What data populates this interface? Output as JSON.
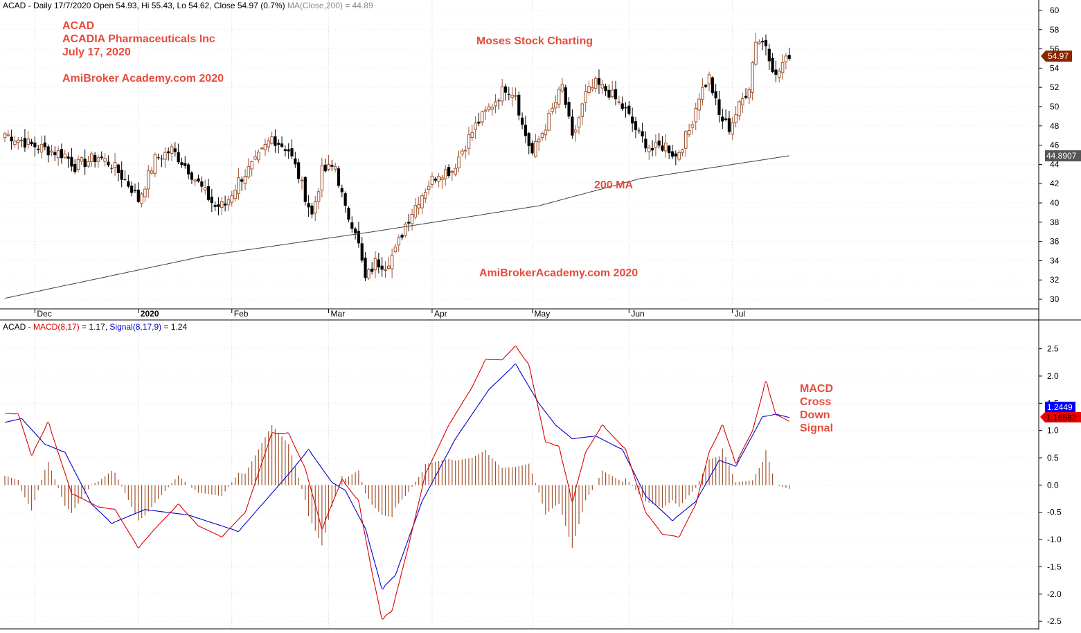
{
  "header": {
    "price_info": "ACAD - Daily 17/7/2020 Open 54.93, Hi 55.43, Lo 54.62, Close 54.97 (0.7%)",
    "ma_info": "MA(Close,200) = 44.89"
  },
  "macd_header": {
    "prefix": "ACAD - ",
    "macd": "MACD(8,17)",
    "macd_val": " = 1.17, ",
    "signal": "Signal(8,17,9)",
    "signal_val": " = 1.24"
  },
  "annotations": {
    "ticker": "ACAD",
    "company": "ACADIA Pharmaceuticals Inc",
    "date": "July 17, 2020",
    "watermark_top": "AmiBroker Academy.com  2020",
    "brand": "Moses Stock Charting",
    "ma_label": "200 MA",
    "watermark_mid": "AmiBrokerAcademy.com  2020",
    "macd_note": [
      "MACD",
      "Cross",
      "Down",
      "Signal"
    ]
  },
  "badges": {
    "close": "54.97",
    "ma": "44.8907",
    "signal": "1.2449",
    "macd": "1.16582"
  },
  "colors": {
    "up_candle": "#a0522d",
    "down_candle": "#000000",
    "ma_line": "#404040",
    "macd_line": "#dd0000",
    "signal_line": "#0000cc",
    "histogram": "#a0522d",
    "annotation": "#e74c3c",
    "close_badge": "#8b2500",
    "ma_badge": "#555555",
    "signal_badge": "#0000ff",
    "macd_badge": "#ee0000"
  },
  "chart_data": [
    {
      "type": "candlestick",
      "ticker": "ACAD",
      "x_axis": [
        "Dec",
        "2020",
        "Feb",
        "Mar",
        "Apr",
        "May",
        "Jun",
        "Jul"
      ],
      "ylim": [
        29.5,
        60.5
      ],
      "yticks": [
        30,
        32,
        34,
        36,
        38,
        40,
        42,
        44,
        46,
        48,
        50,
        52,
        54,
        56,
        58,
        60
      ],
      "close_anchors": [
        [
          0,
          47.2
        ],
        [
          8,
          46.0
        ],
        [
          13,
          45.5
        ],
        [
          18,
          45.0
        ],
        [
          21,
          43.8
        ],
        [
          28,
          44.8
        ],
        [
          32,
          44.0
        ],
        [
          38,
          41.5
        ],
        [
          40,
          40.3
        ],
        [
          45,
          44.5
        ],
        [
          50,
          45.5
        ],
        [
          55,
          43.5
        ],
        [
          60,
          41.0
        ],
        [
          63,
          39.6
        ],
        [
          66,
          39.8
        ],
        [
          70,
          42.3
        ],
        [
          75,
          44.2
        ],
        [
          80,
          46.8
        ],
        [
          85,
          45.5
        ],
        [
          88,
          42.8
        ],
        [
          92,
          38.7
        ],
        [
          95,
          43.2
        ],
        [
          99,
          43.8
        ],
        [
          102,
          39.2
        ],
        [
          105,
          37.3
        ],
        [
          108,
          32.0
        ],
        [
          111,
          33.8
        ],
        [
          114,
          33.6
        ],
        [
          117,
          35.0
        ],
        [
          120,
          37.8
        ],
        [
          124,
          40.4
        ],
        [
          127,
          42.0
        ],
        [
          130,
          43.2
        ],
        [
          134,
          43.4
        ],
        [
          137,
          45.5
        ],
        [
          141,
          48.0
        ],
        [
          145,
          49.8
        ],
        [
          150,
          52.0
        ],
        [
          153,
          51.4
        ],
        [
          155,
          48.0
        ],
        [
          158,
          45.1
        ],
        [
          163,
          48.8
        ],
        [
          167,
          52.1
        ],
        [
          170,
          46.5
        ],
        [
          174,
          51.2
        ],
        [
          177,
          52.3
        ],
        [
          181,
          51.5
        ],
        [
          186,
          49.5
        ],
        [
          190,
          47.0
        ],
        [
          194,
          45.5
        ],
        [
          198,
          46.0
        ],
        [
          201,
          44.8
        ],
        [
          205,
          47.5
        ],
        [
          208,
          51.2
        ],
        [
          211,
          53.0
        ],
        [
          214,
          49.0
        ],
        [
          217,
          47.8
        ],
        [
          220,
          50.0
        ],
        [
          223,
          52.2
        ],
        [
          225,
          57.0
        ],
        [
          228,
          56.5
        ],
        [
          231,
          53.0
        ],
        [
          233,
          54.5
        ],
        [
          235,
          54.97
        ]
      ],
      "ma200_anchors": [
        [
          0,
          30.1
        ],
        [
          60,
          34.5
        ],
        [
          110,
          37.0
        ],
        [
          160,
          39.7
        ],
        [
          190,
          42.5
        ],
        [
          220,
          44.1
        ],
        [
          235,
          44.9
        ]
      ],
      "last_close": 54.97,
      "ma200_last": 44.8907
    },
    {
      "type": "line",
      "title": "MACD(8,17), Signal(8,17,9)",
      "ylim": [
        -2.6,
        2.8
      ],
      "yticks": [
        -2.5,
        -2.0,
        -1.5,
        -1.0,
        -0.5,
        0.0,
        0.5,
        1.0,
        1.5,
        2.0,
        2.5
      ],
      "series": [
        {
          "name": "MACD(8,17)",
          "anchors": [
            [
              0,
              1.32
            ],
            [
              4,
              1.3
            ],
            [
              8,
              0.55
            ],
            [
              13,
              1.15
            ],
            [
              20,
              -0.15
            ],
            [
              28,
              -0.4
            ],
            [
              33,
              -0.45
            ],
            [
              40,
              -1.15
            ],
            [
              45,
              -0.8
            ],
            [
              52,
              -0.35
            ],
            [
              58,
              -0.75
            ],
            [
              65,
              -0.95
            ],
            [
              72,
              -0.5
            ],
            [
              80,
              0.95
            ],
            [
              85,
              0.95
            ],
            [
              90,
              0.3
            ],
            [
              95,
              -0.8
            ],
            [
              101,
              0.1
            ],
            [
              106,
              -0.3
            ],
            [
              110,
              -1.6
            ],
            [
              113,
              -2.45
            ],
            [
              116,
              -2.3
            ],
            [
              121,
              -1.1
            ],
            [
              126,
              0.2
            ],
            [
              133,
              1.1
            ],
            [
              140,
              1.8
            ],
            [
              144,
              2.3
            ],
            [
              149,
              2.3
            ],
            [
              153,
              2.55
            ],
            [
              157,
              2.2
            ],
            [
              162,
              0.8
            ],
            [
              166,
              0.7
            ],
            [
              170,
              -0.3
            ],
            [
              174,
              0.6
            ],
            [
              179,
              1.1
            ],
            [
              186,
              0.65
            ],
            [
              192,
              -0.5
            ],
            [
              197,
              -0.9
            ],
            [
              202,
              -0.95
            ],
            [
              207,
              -0.35
            ],
            [
              211,
              0.6
            ],
            [
              215,
              1.1
            ],
            [
              219,
              0.4
            ],
            [
              224,
              1.0
            ],
            [
              228,
              1.9
            ],
            [
              231,
              1.3
            ],
            [
              235,
              1.17
            ]
          ]
        },
        {
          "name": "Signal(8,17,9)",
          "anchors": [
            [
              0,
              1.15
            ],
            [
              5,
              1.22
            ],
            [
              12,
              0.75
            ],
            [
              18,
              0.6
            ],
            [
              26,
              -0.35
            ],
            [
              32,
              -0.7
            ],
            [
              42,
              -0.45
            ],
            [
              55,
              -0.55
            ],
            [
              70,
              -0.85
            ],
            [
              85,
              0.2
            ],
            [
              91,
              0.65
            ],
            [
              98,
              0.05
            ],
            [
              102,
              -0.1
            ],
            [
              108,
              -0.8
            ],
            [
              113,
              -1.9
            ],
            [
              117,
              -1.65
            ],
            [
              125,
              -0.3
            ],
            [
              135,
              0.85
            ],
            [
              145,
              1.75
            ],
            [
              153,
              2.22
            ],
            [
              160,
              1.5
            ],
            [
              165,
              1.1
            ],
            [
              170,
              0.85
            ],
            [
              177,
              0.9
            ],
            [
              185,
              0.65
            ],
            [
              192,
              -0.2
            ],
            [
              200,
              -0.65
            ],
            [
              207,
              -0.3
            ],
            [
              214,
              0.45
            ],
            [
              219,
              0.35
            ],
            [
              227,
              1.25
            ],
            [
              231,
              1.3
            ],
            [
              235,
              1.24
            ]
          ]
        }
      ],
      "last_macd": 1.16582,
      "last_signal": 1.2449
    }
  ]
}
